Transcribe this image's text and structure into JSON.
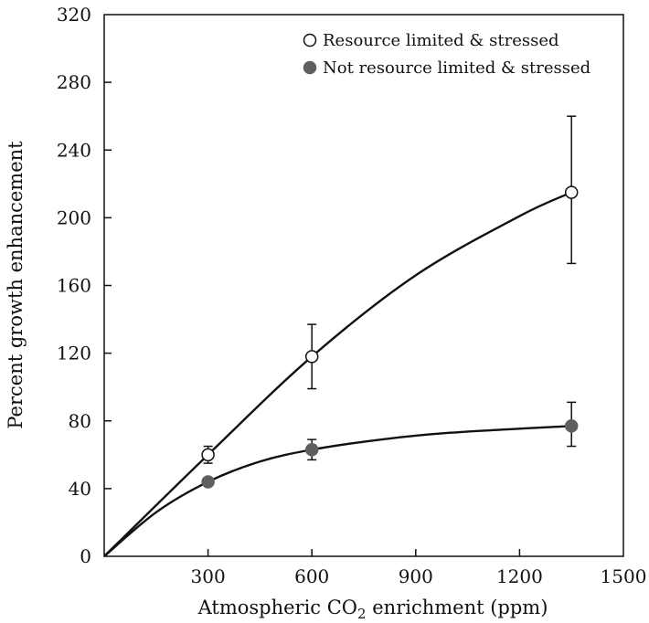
{
  "chart_data": {
    "type": "scatter",
    "xlabel": "Atmospheric CO₂ enrichment (ppm)",
    "xlabel_parts": {
      "before": "Atmospheric CO",
      "sub": "2",
      "after": " enrichment (ppm)"
    },
    "ylabel": "Percent growth enhancement",
    "xlim": [
      0,
      1500
    ],
    "ylim": [
      0,
      320
    ],
    "x_ticks": [
      300,
      600,
      900,
      1200,
      1500
    ],
    "x_tick_labels": [
      "300",
      "600",
      "900",
      "1200",
      "1500"
    ],
    "y_ticks": [
      0,
      40,
      80,
      120,
      160,
      200,
      240,
      280,
      320
    ],
    "y_tick_labels": [
      "0",
      "40",
      "80",
      "120",
      "160",
      "200",
      "240",
      "280",
      "320"
    ],
    "grid": false,
    "legend_position": "top-right",
    "series": [
      {
        "name": "Resource limited & stressed",
        "marker": "open-circle",
        "color": "#ffffff",
        "x": [
          300,
          600,
          1350
        ],
        "y": [
          60,
          118,
          215
        ],
        "error_low": [
          55,
          99,
          173
        ],
        "error_high": [
          65,
          137,
          260
        ],
        "curve": [
          [
            0,
            0
          ],
          [
            300,
            60
          ],
          [
            600,
            118
          ],
          [
            900,
            166
          ],
          [
            1200,
            201
          ],
          [
            1350,
            215
          ]
        ]
      },
      {
        "name": "Not resource limited & stressed",
        "marker": "filled-circle",
        "color": "#5f5f5f",
        "x": [
          300,
          600,
          1350
        ],
        "y": [
          44,
          63,
          77
        ],
        "error_low": [
          null,
          57,
          65
        ],
        "error_high": [
          null,
          69,
          91
        ],
        "curve": [
          [
            0,
            0
          ],
          [
            150,
            26
          ],
          [
            300,
            44
          ],
          [
            450,
            56
          ],
          [
            600,
            63
          ],
          [
            800,
            69
          ],
          [
            1000,
            73
          ],
          [
            1350,
            77
          ]
        ]
      }
    ]
  }
}
